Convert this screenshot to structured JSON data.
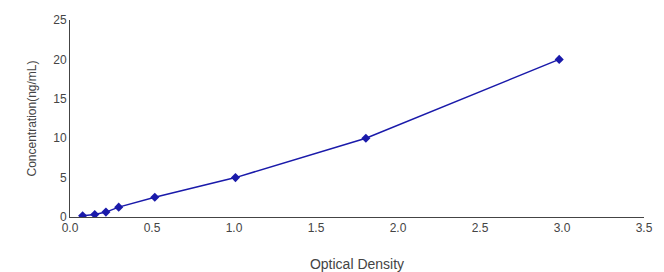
{
  "chart_data": {
    "type": "line",
    "xlabel": "Optical Density",
    "ylabel": "Concentration(ng/mL)",
    "x": [
      0.077,
      0.151,
      0.219,
      0.297,
      0.517,
      1.009,
      1.804,
      2.983
    ],
    "values": [
      0.156,
      0.312,
      0.625,
      1.25,
      2.5,
      5.0,
      10.0,
      20.0
    ],
    "color": "#1a1aaa",
    "marker": "diamond",
    "xlim": [
      0,
      3.5
    ],
    "ylim": [
      0,
      25
    ],
    "xticks": [
      {
        "value": 0,
        "label": "0.0"
      },
      0.5,
      {
        "value": 1.0,
        "label": "1.0"
      },
      1.5,
      {
        "value": 2.0,
        "label": "2.0"
      },
      2.5,
      {
        "value": 3.0,
        "label": "3.0"
      },
      3.5
    ],
    "yticks": [
      0,
      5,
      10,
      15,
      20,
      25
    ],
    "grid": false
  }
}
